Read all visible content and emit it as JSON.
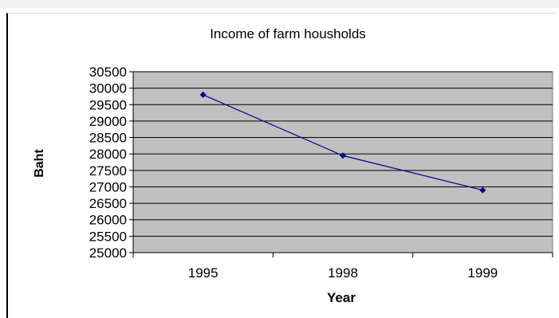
{
  "chart_data": {
    "type": "line",
    "title": "Income of farm housholds",
    "xlabel": "Year",
    "ylabel": "Baht",
    "categories": [
      "1995",
      "1998",
      "1999"
    ],
    "series": [
      {
        "values": [
          29800,
          27950,
          26900
        ],
        "color": "#00008b"
      }
    ],
    "ylim": [
      25000,
      30500
    ],
    "yticks": [
      "30500",
      "30000",
      "29500",
      "29000",
      "28500",
      "28000",
      "27500",
      "27000",
      "26500",
      "26000",
      "25500",
      "25000"
    ],
    "grid": true,
    "legend": "none",
    "plot_background": "#c0c0c0"
  }
}
